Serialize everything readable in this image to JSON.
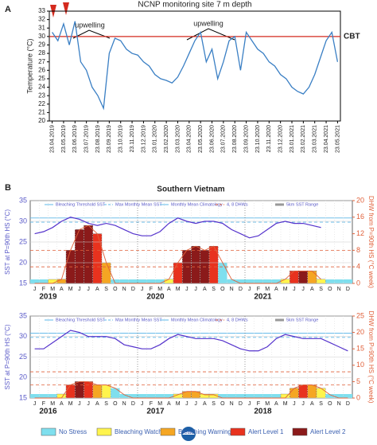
{
  "chart_data": [
    {
      "type": "line",
      "panel": "A",
      "title": "NCNP monitoring site 7 m depth",
      "y_label": "Temperature (°C)",
      "categories": [
        "23.04.2019",
        null,
        "23.05.2019",
        null,
        "23.06.2019",
        null,
        "23.07.2019",
        null,
        "23.08.2019",
        null,
        "23.09.2019",
        null,
        "23.10.2019",
        null,
        "23.11.2019",
        null,
        "23.12.2019",
        null,
        "23.01.2020",
        null,
        "23.02.2020",
        null,
        "23.03.2020",
        null,
        "23.04.2020",
        null,
        "23.05.2020",
        null,
        "23.06.2020",
        null,
        "23.07.2020",
        null,
        "23.08.2020",
        null,
        "23.09.2020",
        null,
        "23.10.2020",
        null,
        "23.11.2020",
        null,
        "23.12.2020",
        null,
        "23.01.2021",
        null,
        "23.02.2021",
        null,
        "23.03.2021",
        null,
        "23.04.2021",
        null,
        "23.05.2021"
      ],
      "values": [
        30.5,
        29.5,
        31.5,
        29,
        31.8,
        27,
        26,
        24,
        23,
        21.5,
        28,
        29.8,
        29.5,
        28.5,
        28,
        27.8,
        27,
        26.5,
        25.5,
        25,
        24.8,
        24.5,
        25.2,
        26.5,
        28,
        29.5,
        30.5,
        27,
        28.5,
        25,
        27,
        29.5,
        30,
        26,
        30.5,
        29.5,
        28.5,
        28,
        27,
        26.5,
        25.5,
        25,
        24,
        23.5,
        23.2,
        24,
        25.5,
        27.5,
        29.5,
        30.5,
        27
      ],
      "color": "#3a7fc4",
      "ylim": [
        20,
        33
      ],
      "yticks": [
        20,
        21,
        22,
        23,
        24,
        25,
        26,
        27,
        28,
        29,
        30,
        31,
        32,
        33
      ],
      "cbt": 30,
      "cbt_label": "CBT",
      "annotations": [
        "upwelling",
        "upwelling"
      ]
    },
    {
      "type": "coral",
      "panel": "B",
      "title": "Southern Vietnam",
      "y_label": "SST at P=90th HS (°C)",
      "y2_label": "DHW from P=90th HS (°C week)",
      "legend": [
        "Bleaching Threshold SST",
        "Max Monthly Mean SST",
        "Monthly Mean Climatology",
        "4, 8 DHWs",
        "5km SST Range"
      ],
      "categories": [
        "J",
        "F",
        "M",
        "A",
        "M",
        "J",
        "J",
        "A",
        "S",
        "O",
        "N",
        "D",
        "J",
        "F",
        "M",
        "A",
        "M",
        "J",
        "J",
        "A",
        "S",
        "O",
        "N",
        "D",
        "J",
        "F",
        "M",
        "A",
        "M",
        "J",
        "J",
        "A",
        "S",
        "O",
        "N",
        "D"
      ],
      "years": [
        "2019",
        "2020",
        "2021"
      ],
      "sst": [
        27,
        27.5,
        28.5,
        30,
        31,
        30.5,
        29.5,
        29,
        29.5,
        29,
        28,
        27,
        26.5,
        26.5,
        27.5,
        29.5,
        30.8,
        30,
        29.5,
        30,
        30,
        29.5,
        28,
        27,
        26,
        26.5,
        28,
        29.5,
        30,
        29.5,
        29.5,
        29,
        28.5,
        null,
        null,
        null
      ],
      "dhw": [
        0,
        0,
        0,
        1,
        8,
        13,
        14,
        12,
        5,
        0,
        0,
        0,
        0,
        0,
        0,
        1,
        5,
        8,
        9,
        8,
        9,
        5,
        1,
        0,
        0,
        0,
        0,
        0,
        1,
        3,
        3,
        3,
        1,
        null,
        null,
        null
      ],
      "stress": [
        0,
        0,
        1,
        2,
        4,
        4,
        4,
        3,
        2,
        0,
        0,
        0,
        0,
        0,
        0,
        1,
        3,
        4,
        4,
        4,
        3,
        0,
        0,
        0,
        0,
        0,
        0,
        0,
        1,
        3,
        4,
        2,
        1,
        null,
        null,
        null
      ],
      "bleaching_threshold": 30.8,
      "mmm": 29.8,
      "dhw_lines": [
        4,
        8
      ],
      "ylim": [
        15,
        35
      ],
      "yticks": [
        15,
        20,
        25,
        30,
        35
      ],
      "y2lim": [
        0,
        20
      ],
      "y2ticks": [
        0,
        4,
        8,
        12,
        16,
        20
      ]
    },
    {
      "type": "coral",
      "legend": [
        "Bleaching Threshold SST",
        "Max Monthly Mean SST",
        "Monthly Mean Climatology",
        "4, 8 DHWs",
        "5km SST Range"
      ],
      "y_label": "SST at P=90th HS (°C)",
      "y2_label": "DHW from P=90th HS (°C week)",
      "categories": [
        "J",
        "F",
        "M",
        "A",
        "M",
        "J",
        "J",
        "A",
        "S",
        "O",
        "N",
        "D",
        "J",
        "F",
        "M",
        "A",
        "M",
        "J",
        "J",
        "A",
        "S",
        "O",
        "N",
        "D",
        "J",
        "F",
        "M",
        "A",
        "M",
        "J",
        "J",
        "A",
        "S",
        "O",
        "N",
        "D"
      ],
      "years": [
        "2016",
        "2017",
        "2018"
      ],
      "sst": [
        27,
        27,
        28.5,
        30,
        31.5,
        31,
        30,
        30,
        30,
        29.5,
        28,
        27.5,
        27,
        27,
        28,
        29.5,
        30.5,
        30,
        29.5,
        29.5,
        29.5,
        29,
        28,
        27,
        26.5,
        26.5,
        27.5,
        29.5,
        30.5,
        30,
        29.5,
        29.5,
        29.5,
        28.5,
        27.5,
        26.5
      ],
      "dhw": [
        0,
        0,
        0,
        0,
        4,
        5,
        5,
        4,
        4,
        3,
        1,
        0,
        0,
        0,
        0,
        0,
        1,
        2,
        2,
        1,
        1,
        0,
        0,
        0,
        0,
        0,
        0,
        0,
        0,
        3,
        4,
        4,
        3,
        1,
        0,
        0
      ],
      "stress": [
        0,
        0,
        0,
        1,
        3,
        4,
        3,
        2,
        1,
        0,
        0,
        0,
        0,
        0,
        0,
        0,
        1,
        2,
        2,
        1,
        1,
        0,
        0,
        0,
        0,
        0,
        0,
        0,
        1,
        2,
        3,
        2,
        1,
        0,
        0,
        0
      ],
      "bleaching_threshold": 30.8,
      "mmm": 29.8,
      "dhw_lines": [
        4,
        8
      ],
      "ylim": [
        15,
        35
      ],
      "yticks": [
        15,
        20,
        25,
        30,
        35
      ],
      "y2lim": [
        0,
        25
      ],
      "y2ticks": [
        0,
        5,
        10,
        15,
        20,
        25
      ]
    }
  ],
  "stress_legend": [
    {
      "label": "No Stress",
      "color": "#7fdfee"
    },
    {
      "label": "Bleaching Watch",
      "color": "#fff44d"
    },
    {
      "label": "Bleaching Warning",
      "color": "#f5a623"
    },
    {
      "label": "Alert Level 1",
      "color": "#e8321e"
    },
    {
      "label": "Alert Level 2",
      "color": "#8b1a1a"
    }
  ]
}
